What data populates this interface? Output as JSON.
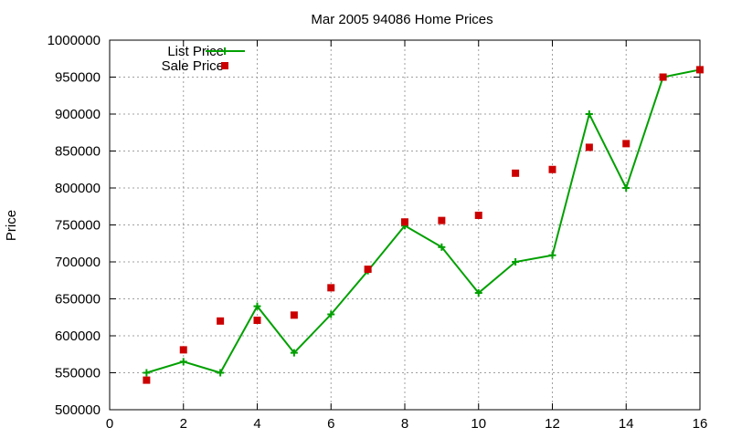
{
  "chart_data": {
    "type": "line",
    "title": "Mar 2005 94086 Home Prices",
    "xlabel": "",
    "ylabel": "Price",
    "xlim": [
      0,
      16
    ],
    "ylim": [
      500000,
      1000000
    ],
    "x_ticks": [
      0,
      2,
      4,
      6,
      8,
      10,
      12,
      14,
      16
    ],
    "y_ticks": [
      500000,
      550000,
      600000,
      650000,
      700000,
      750000,
      800000,
      850000,
      900000,
      950000,
      1000000
    ],
    "x_tick_labels": [
      "0",
      "2",
      "4",
      "6",
      "8",
      "10",
      "12",
      "14",
      "16"
    ],
    "y_tick_labels": [
      "500000",
      "550000",
      "600000",
      "650000",
      "700000",
      "750000",
      "800000",
      "850000",
      "900000",
      "950000",
      "1000000"
    ],
    "grid": true,
    "legend_position": "top-left",
    "series": [
      {
        "name": "List Price",
        "style": "line-with-plus-markers",
        "color": "#00a000",
        "x": [
          1,
          2,
          3,
          4,
          5,
          6,
          7,
          8,
          9,
          10,
          11,
          12,
          13,
          14,
          15,
          16
        ],
        "values": [
          550000,
          565000,
          550000,
          640000,
          577000,
          629000,
          688000,
          749000,
          720000,
          658000,
          700000,
          709000,
          900000,
          800000,
          950000,
          960000
        ]
      },
      {
        "name": "Sale Price",
        "style": "square-markers",
        "color": "#cc0000",
        "x": [
          1,
          2,
          3,
          4,
          5,
          6,
          7,
          8,
          9,
          10,
          11,
          12,
          13,
          14,
          15,
          16
        ],
        "values": [
          540000,
          581000,
          620000,
          621000,
          628000,
          665000,
          690000,
          754000,
          756000,
          763000,
          820000,
          825000,
          855000,
          860000,
          950000,
          960000
        ]
      }
    ]
  }
}
